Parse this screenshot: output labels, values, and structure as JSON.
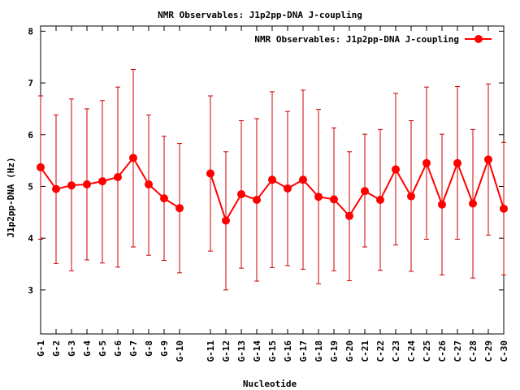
{
  "chart_data": {
    "type": "line",
    "title": "NMR Observables: J1p2pp-DNA J-coupling",
    "xlabel": "Nucleotide",
    "ylabel": "J1p2pp-DNA (Hz)",
    "ylim": [
      2.15,
      8.1
    ],
    "yticks": [
      3,
      4,
      5,
      6,
      7,
      8
    ],
    "legend_position": "top-right",
    "series_color": "#ff0000",
    "error_bar_color": "#cc0000",
    "categories": [
      "G-1",
      "G-2",
      "G-3",
      "G-4",
      "G-5",
      "G-6",
      "G-7",
      "G-8",
      "G-9",
      "G-10",
      "",
      "G-11",
      "G-12",
      "G-13",
      "G-14",
      "G-15",
      "G-16",
      "G-17",
      "G-18",
      "G-19",
      "G-20",
      "C-21",
      "C-22",
      "C-23",
      "C-24",
      "C-25",
      "C-26",
      "C-27",
      "C-28",
      "C-29",
      "C-30"
    ],
    "series": [
      {
        "name": "NMR Observables: J1p2pp-DNA J-coupling",
        "segments": [
          {
            "start_index": 0,
            "values": [
              5.37,
              4.95,
              5.02,
              5.04,
              5.1,
              5.18,
              5.55,
              5.04,
              4.77,
              4.58
            ],
            "error_low": [
              3.98,
              3.51,
              3.37,
              3.58,
              3.52,
              3.44,
              3.83,
              3.67,
              3.57,
              3.33
            ],
            "error_high": [
              6.75,
              6.38,
              6.69,
              6.5,
              6.66,
              6.92,
              7.26,
              6.38,
              5.97,
              5.83
            ]
          },
          {
            "start_index": 11,
            "values": [
              5.25,
              4.34,
              4.85,
              4.74,
              5.13,
              4.96,
              5.13,
              4.8,
              4.75,
              4.43,
              4.91,
              4.74,
              5.33,
              4.81,
              5.45,
              4.65,
              5.45,
              4.67,
              5.52,
              4.57
            ],
            "error_low": [
              3.75,
              3.0,
              3.42,
              3.17,
              3.43,
              3.47,
              3.4,
              3.12,
              3.37,
              3.18,
              3.83,
              3.38,
              3.87,
              3.36,
              3.98,
              3.29,
              3.98,
              3.23,
              4.06,
              3.29
            ],
            "error_high": [
              6.75,
              5.67,
              6.27,
              6.31,
              6.83,
              6.45,
              6.86,
              6.49,
              6.13,
              5.67,
              6.01,
              6.1,
              6.8,
              6.27,
              6.92,
              6.01,
              6.93,
              6.1,
              6.98,
              5.85
            ]
          }
        ]
      }
    ]
  }
}
